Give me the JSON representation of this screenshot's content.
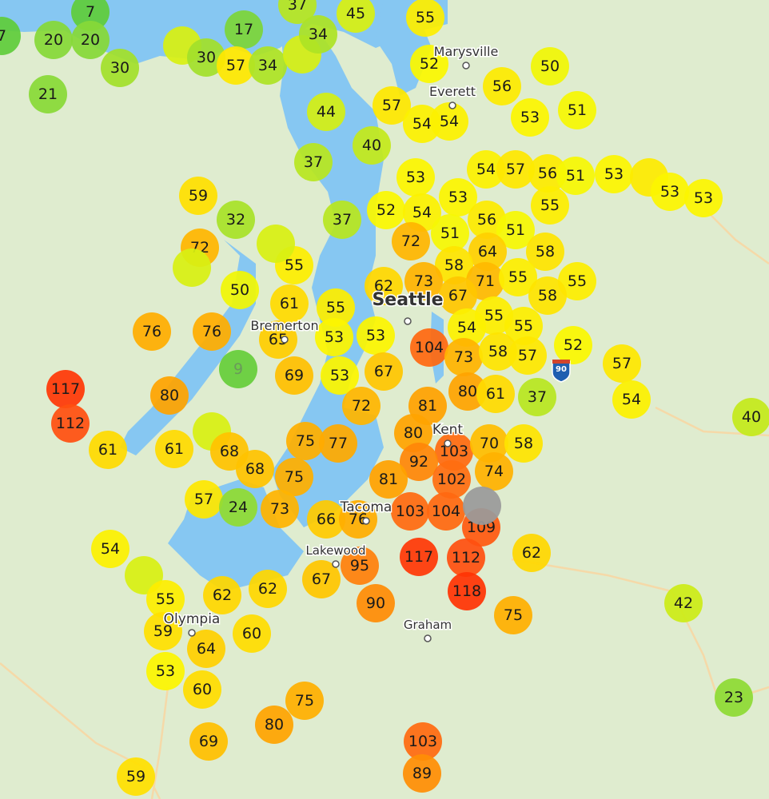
{
  "map": {
    "water_color": "#86c7f2",
    "land_color": "#dfeccf",
    "color_scale": [
      {
        "aqi": 0,
        "color": "#4cc63c"
      },
      {
        "aqi": 20,
        "color": "#86d838"
      },
      {
        "aqi": 35,
        "color": "#b0e424"
      },
      {
        "aqi": 45,
        "color": "#d8f012"
      },
      {
        "aqi": 52,
        "color": "#fbf800"
      },
      {
        "aqi": 60,
        "color": "#ffdd00"
      },
      {
        "aqi": 72,
        "color": "#ffb600"
      },
      {
        "aqi": 85,
        "color": "#ff9800"
      },
      {
        "aqi": 100,
        "color": "#ff7410"
      },
      {
        "aqi": 112,
        "color": "#ff5010"
      },
      {
        "aqi": 120,
        "color": "#ff2a00"
      }
    ],
    "cities": [
      {
        "name": "Marysville"
      },
      {
        "name": "Everett"
      },
      {
        "name": "Seattle"
      },
      {
        "name": "Bremerton"
      },
      {
        "name": "Kent"
      },
      {
        "name": "Tacoma"
      },
      {
        "name": "Lakewood"
      },
      {
        "name": "Olympia"
      },
      {
        "name": "Graham"
      }
    ],
    "highway_shields": [
      "90"
    ],
    "sensors": [
      "7",
      "7",
      "20",
      "20",
      "30",
      "21",
      "",
      "30",
      "17",
      "57",
      "34",
      "",
      "37",
      "45",
      "34",
      "44",
      "40",
      "37",
      "37",
      "32",
      "59",
      "72",
      "",
      "50",
      "61",
      "55",
      "55",
      "53",
      "",
      "76",
      "76",
      "9",
      "65",
      "69",
      "53",
      "55",
      "52",
      "56",
      "50",
      "51",
      "53",
      "57",
      "54",
      "54",
      "54",
      "57",
      "56",
      "51",
      "53",
      "",
      "53",
      "53",
      "53",
      "53",
      "52",
      "54",
      "56",
      "55",
      "72",
      "51",
      "51",
      "64",
      "58",
      "58",
      "73",
      "62",
      "71",
      "55",
      "55",
      "67",
      "58",
      "55",
      "55",
      "54",
      "53",
      "104",
      "73",
      "58",
      "57",
      "52",
      "57",
      "67",
      "80",
      "61",
      "37",
      "54",
      "40",
      "117",
      "112",
      "61",
      "80",
      "61",
      "",
      "68",
      "68",
      "75",
      "77",
      "72",
      "75",
      "57",
      "24",
      "73",
      "66",
      "76",
      "54",
      "",
      "55",
      "62",
      "62",
      "67",
      "95",
      "90",
      "59",
      "64",
      "60",
      "53",
      "60",
      "75",
      "80",
      "69",
      "59",
      "81",
      "80",
      "103",
      "92",
      "81",
      "102",
      "103",
      "104",
      "109",
      "117",
      "112",
      "118",
      "70",
      "58",
      "74",
      "62",
      "75",
      "42",
      "23",
      "103",
      "89",
      ""
    ]
  }
}
